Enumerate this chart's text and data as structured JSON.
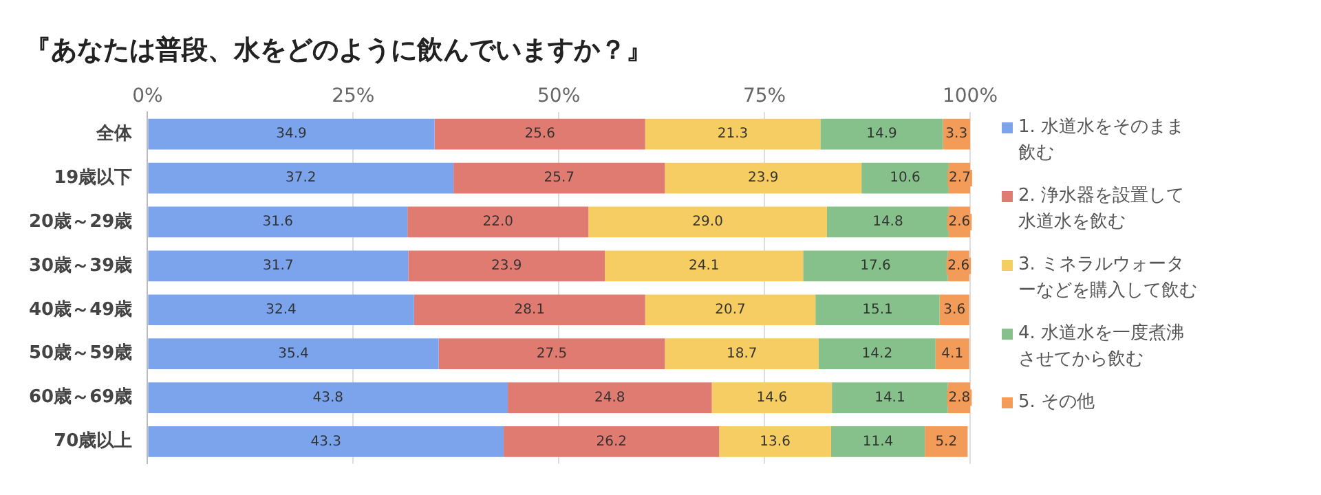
{
  "chart_data": {
    "type": "bar",
    "orientation": "horizontal",
    "stacked": true,
    "title": "『あなたは普段、水をどのように飲んでいますか？』",
    "categories": [
      "全体",
      "19歳以下",
      "20歳～29歳",
      "30歳～39歳",
      "40歳～49歳",
      "50歳～59歳",
      "60歳～69歳",
      "70歳以上"
    ],
    "series": [
      {
        "name": "1. 水道水をそのまま飲む",
        "color": "#7ba4ec",
        "values": [
          34.9,
          37.2,
          31.6,
          31.7,
          32.4,
          35.4,
          43.8,
          43.3
        ],
        "value_labels": [
          "34.9",
          "37.2",
          "31.6",
          "31.7",
          "32.4",
          "35.4",
          "43.8",
          "43.3"
        ]
      },
      {
        "name": "2. 浄水器を設置して水道水を飲む",
        "color": "#e07b72",
        "values": [
          25.6,
          25.7,
          22.0,
          23.9,
          28.1,
          27.5,
          24.8,
          26.2
        ],
        "value_labels": [
          "25.6",
          "25.7",
          "22.0",
          "23.9",
          "28.1",
          "27.5",
          "24.8",
          "26.2"
        ]
      },
      {
        "name": "3. ミネラルウォーターなどを購入して飲む",
        "color": "#f5cd63",
        "values": [
          21.3,
          23.9,
          29.0,
          24.1,
          20.7,
          18.7,
          14.6,
          13.6
        ],
        "value_labels": [
          "21.3",
          "23.9",
          "29.0",
          "24.1",
          "20.7",
          "18.7",
          "14.6",
          "13.6"
        ]
      },
      {
        "name": "4. 水道水を一度煮沸させてから飲む",
        "color": "#86c08a",
        "values": [
          14.9,
          10.6,
          14.8,
          17.6,
          15.1,
          14.2,
          14.1,
          11.4
        ],
        "value_labels": [
          "14.9",
          "10.6",
          "14.8",
          "17.6",
          "15.1",
          "14.2",
          "14.1",
          "11.4"
        ]
      },
      {
        "name": "5. その他",
        "color": "#f39c5a",
        "values": [
          3.3,
          2.7,
          2.6,
          2.6,
          3.6,
          4.1,
          2.8,
          5.2
        ],
        "value_labels": [
          "3.3",
          "2.7",
          "2.6",
          "2.6",
          "3.6",
          "4.1",
          "2.8",
          "5.2"
        ]
      }
    ],
    "xlim": [
      0,
      100
    ],
    "xticks": [
      {
        "value": 0,
        "label": "0%"
      },
      {
        "value": 25,
        "label": "25%"
      },
      {
        "value": 50,
        "label": "50%"
      },
      {
        "value": 75,
        "label": "75%"
      },
      {
        "value": 100,
        "label": "100%"
      }
    ],
    "grid": "x",
    "legend": "right"
  }
}
